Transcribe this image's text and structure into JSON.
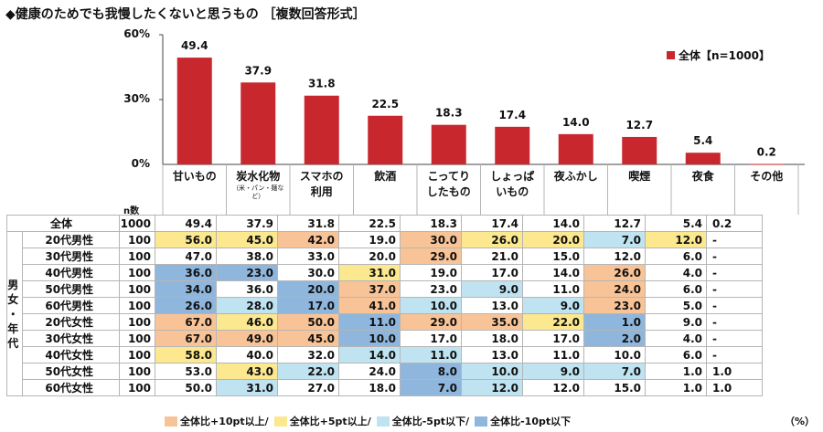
{
  "title": "◆健康のためでも我慢したくないと思うもの ［複数回答形式］",
  "legend_label": "全体【n=1000】",
  "n_label": "n数",
  "unit_label": "（%）",
  "colors": {
    "bar": "#c8282d",
    "high_plus": "#f8c497",
    "plus": "#fbe88f",
    "minus": "#bfe3f1",
    "high_minus": "#8fb6dc"
  },
  "chart_data": {
    "type": "bar",
    "categories": [
      "甘いもの",
      "炭水化物",
      "スマホの利用",
      "飲酒",
      "こってりしたもの",
      "しょっぱいもの",
      "夜ふかし",
      "喫煙",
      "夜食",
      "その他"
    ],
    "category_lines": [
      [
        "甘いもの"
      ],
      [
        "炭水化物"
      ],
      [
        "スマホの",
        "利用"
      ],
      [
        "飲酒"
      ],
      [
        "こってり",
        "したもの"
      ],
      [
        "しょっぱ",
        "いもの"
      ],
      [
        "夜ふかし"
      ],
      [
        "喫煙"
      ],
      [
        "夜食"
      ],
      [
        "その他"
      ]
    ],
    "category_sub": [
      "",
      "（米・パン・麺など）",
      "",
      "",
      "",
      "",
      "",
      "",
      "",
      ""
    ],
    "values": [
      49.4,
      37.9,
      31.8,
      22.5,
      18.3,
      17.4,
      14.0,
      12.7,
      5.4,
      0.2
    ],
    "value_labels": [
      "49.4",
      "37.9",
      "31.8",
      "22.5",
      "18.3",
      "17.4",
      "14.0",
      "12.7",
      "5.4",
      "0.2"
    ],
    "ylim": [
      0,
      60
    ],
    "yticks": [
      "0%",
      "30%",
      "60%"
    ],
    "legend": "top-right"
  },
  "table": {
    "group_label": [
      "男",
      "女",
      "・",
      "年",
      "代"
    ],
    "total_row": {
      "label": "全体",
      "n": "1000",
      "values": [
        "49.4",
        "37.9",
        "31.8",
        "22.5",
        "18.3",
        "17.4",
        "14.0",
        "12.7",
        "5.4",
        "0.2"
      ]
    },
    "rows": [
      {
        "label": "20代男性",
        "n": "100",
        "values": [
          "56.0",
          "45.0",
          "42.0",
          "19.0",
          "30.0",
          "26.0",
          "20.0",
          "7.0",
          "12.0",
          "-"
        ],
        "shade": [
          "p",
          "p",
          "hp",
          "",
          "hp",
          "p",
          "p",
          "m",
          "p",
          ""
        ]
      },
      {
        "label": "30代男性",
        "n": "100",
        "values": [
          "47.0",
          "38.0",
          "33.0",
          "20.0",
          "29.0",
          "21.0",
          "15.0",
          "12.0",
          "6.0",
          "-"
        ],
        "shade": [
          "",
          "",
          "",
          "",
          "hp",
          "",
          "",
          "",
          "",
          ""
        ]
      },
      {
        "label": "40代男性",
        "n": "100",
        "values": [
          "36.0",
          "23.0",
          "30.0",
          "31.0",
          "19.0",
          "17.0",
          "14.0",
          "26.0",
          "4.0",
          "-"
        ],
        "shade": [
          "lm",
          "lm",
          "",
          "p",
          "",
          "",
          "",
          "hp",
          "",
          ""
        ]
      },
      {
        "label": "50代男性",
        "n": "100",
        "values": [
          "34.0",
          "36.0",
          "20.0",
          "37.0",
          "23.0",
          "9.0",
          "11.0",
          "24.0",
          "6.0",
          "-"
        ],
        "shade": [
          "lm",
          "",
          "lm",
          "hp",
          "",
          "m",
          "",
          "hp",
          "",
          ""
        ]
      },
      {
        "label": "60代男性",
        "n": "100",
        "values": [
          "26.0",
          "28.0",
          "17.0",
          "41.0",
          "10.0",
          "13.0",
          "9.0",
          "23.0",
          "5.0",
          "-"
        ],
        "shade": [
          "lm",
          "m",
          "lm",
          "hp",
          "m",
          "",
          "m",
          "hp",
          "",
          ""
        ]
      },
      {
        "label": "20代女性",
        "n": "100",
        "values": [
          "67.0",
          "46.0",
          "50.0",
          "11.0",
          "29.0",
          "35.0",
          "22.0",
          "1.0",
          "9.0",
          "-"
        ],
        "shade": [
          "hp",
          "p",
          "hp",
          "lm",
          "hp",
          "hp",
          "p",
          "lm",
          "",
          ""
        ]
      },
      {
        "label": "30代女性",
        "n": "100",
        "values": [
          "67.0",
          "49.0",
          "45.0",
          "10.0",
          "17.0",
          "18.0",
          "17.0",
          "2.0",
          "4.0",
          "-"
        ],
        "shade": [
          "hp",
          "hp",
          "hp",
          "lm",
          "",
          "",
          "",
          "lm",
          "",
          ""
        ]
      },
      {
        "label": "40代女性",
        "n": "100",
        "values": [
          "58.0",
          "40.0",
          "32.0",
          "14.0",
          "11.0",
          "13.0",
          "11.0",
          "10.0",
          "6.0",
          "-"
        ],
        "shade": [
          "p",
          "",
          "",
          "m",
          "m",
          "",
          "",
          "",
          "",
          ""
        ]
      },
      {
        "label": "50代女性",
        "n": "100",
        "values": [
          "53.0",
          "43.0",
          "22.0",
          "24.0",
          "8.0",
          "10.0",
          "9.0",
          "7.0",
          "1.0",
          "1.0"
        ],
        "shade": [
          "",
          "p",
          "m",
          "",
          "lm",
          "m",
          "m",
          "m",
          "",
          ""
        ]
      },
      {
        "label": "60代女性",
        "n": "100",
        "values": [
          "50.0",
          "31.0",
          "27.0",
          "18.0",
          "7.0",
          "12.0",
          "12.0",
          "15.0",
          "1.0",
          "1.0"
        ],
        "shade": [
          "",
          "m",
          "",
          "",
          "lm",
          "m",
          "",
          "",
          "",
          ""
        ]
      }
    ]
  },
  "shade_legend": [
    {
      "key": "hp",
      "label": "全体比+10pt以上/"
    },
    {
      "key": "p",
      "label": "全体比+5pt以上/"
    },
    {
      "key": "m",
      "label": "全体比-5pt以下/"
    },
    {
      "key": "lm",
      "label": "全体比-10pt以下"
    }
  ]
}
